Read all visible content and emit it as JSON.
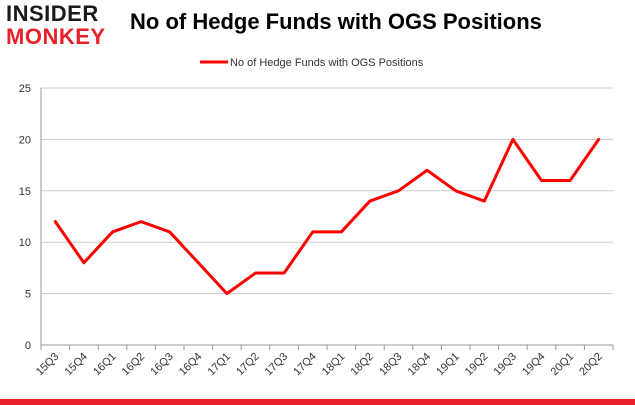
{
  "logo": {
    "line1": "INSIDER",
    "line2": "MONKEY"
  },
  "chart_data": {
    "type": "line",
    "title": "No of Hedge Funds with OGS Positions",
    "categories": [
      "15Q3",
      "15Q4",
      "16Q1",
      "16Q2",
      "16Q3",
      "16Q4",
      "17Q1",
      "17Q2",
      "17Q3",
      "17Q4",
      "18Q1",
      "18Q2",
      "18Q3",
      "18Q4",
      "19Q1",
      "19Q2",
      "19Q3",
      "19Q4",
      "20Q1",
      "20Q2"
    ],
    "series": [
      {
        "name": "No of Hedge Funds with OGS Positions",
        "values": [
          12,
          8,
          11,
          12,
          11,
          8,
          5,
          7,
          7,
          11,
          11,
          14,
          15,
          17,
          15,
          14,
          20,
          16,
          16,
          20
        ],
        "color": "#ff0000"
      }
    ],
    "ylim": [
      0,
      25
    ],
    "yticks": [
      0,
      5,
      10,
      15,
      20,
      25
    ],
    "grid": true,
    "legend_position": "top-center",
    "xlabel": "",
    "ylabel": ""
  },
  "colors": {
    "brand_red": "#e8212a",
    "grid": "#cccccc",
    "line": "#ff0000"
  }
}
